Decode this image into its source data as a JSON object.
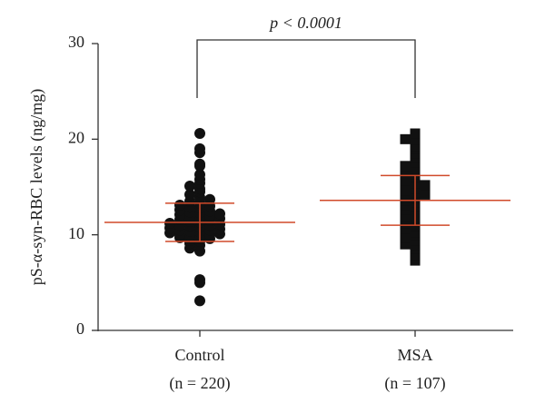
{
  "chart_data": {
    "type": "dot-plot",
    "ylabel": "pS-α-syn-RBC levels (ng/mg)",
    "annotation": "p < 0.0001",
    "categories": [
      "Control",
      "MSA"
    ],
    "n_labels": [
      "(n = 220)",
      "(n = 107)"
    ],
    "ylim": [
      0,
      30
    ],
    "yticks": [
      0,
      10,
      20,
      30
    ],
    "groups": [
      {
        "marker": "circle",
        "color": "#111111",
        "mean": 11.3,
        "sd": 2.0,
        "values": [
          3.1,
          5.0,
          5.3,
          8.3,
          8.6,
          8.9,
          9.1,
          9.3,
          9.4,
          9.6,
          9.7,
          9.8,
          9.9,
          10.0,
          10.0,
          10.1,
          10.2,
          10.3,
          10.4,
          10.5,
          10.5,
          10.6,
          10.7,
          10.8,
          10.9,
          11.0,
          11.0,
          11.1,
          11.2,
          11.3,
          11.4,
          11.5,
          11.6,
          11.7,
          11.8,
          11.9,
          12.0,
          12.1,
          12.2,
          12.3,
          12.4,
          12.5,
          12.6,
          12.8,
          12.9,
          13.0,
          13.1,
          13.3,
          13.5,
          13.7,
          13.9,
          14.2,
          14.5,
          14.8,
          15.1,
          15.4,
          15.8,
          16.3,
          17.2,
          17.4,
          18.6,
          19.0,
          20.6
        ]
      },
      {
        "marker": "square",
        "color": "#111111",
        "mean": 13.6,
        "sd": 2.6,
        "values": [
          7.3,
          7.9,
          8.5,
          8.8,
          9.0,
          9.4,
          9.7,
          10.0,
          10.3,
          10.6,
          10.9,
          11.2,
          11.5,
          11.8,
          12.0,
          12.3,
          12.6,
          12.9,
          13.1,
          13.4,
          13.6,
          13.8,
          14.0,
          14.2,
          14.4,
          14.6,
          14.8,
          15.0,
          15.2,
          15.4,
          15.7,
          16.0,
          16.3,
          16.6,
          16.9,
          17.2,
          17.6,
          18.0,
          18.5,
          19.0,
          19.3,
          19.9,
          20.0,
          20.6
        ]
      }
    ],
    "stat_color": "#d04a2a"
  }
}
